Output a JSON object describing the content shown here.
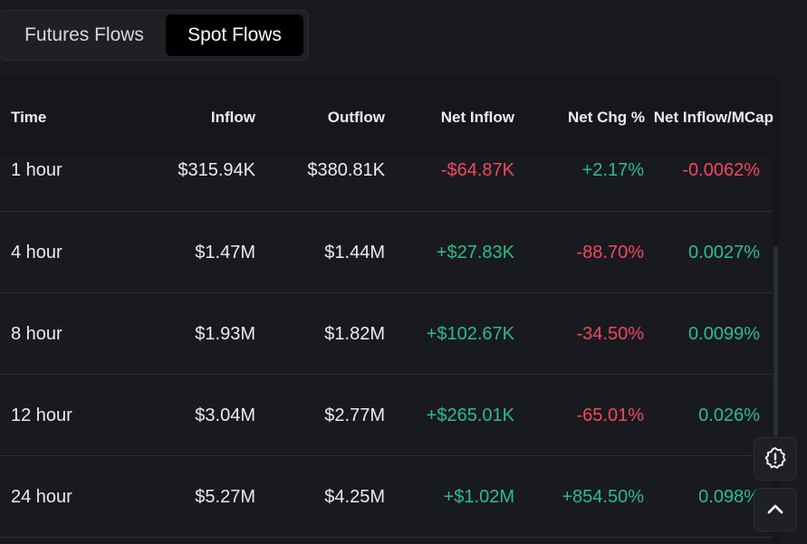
{
  "tabs": [
    {
      "label": "Futures Flows",
      "active": false
    },
    {
      "label": "Spot Flows",
      "active": true
    }
  ],
  "table": {
    "headers": {
      "time": "Time",
      "inflow": "Inflow",
      "outflow": "Outflow",
      "net_inflow": "Net Inflow",
      "net_chg": "Net Chg %",
      "net_mcap": "Net Inflow/MCap"
    },
    "rows": [
      {
        "time": "1 hour",
        "inflow": "$315.94K",
        "outflow": "$380.81K",
        "net_inflow": "-$64.87K",
        "net_chg": "+2.17%",
        "net_mcap": "-0.0062%"
      },
      {
        "time": "4 hour",
        "inflow": "$1.47M",
        "outflow": "$1.44M",
        "net_inflow": "+$27.83K",
        "net_chg": "-88.70%",
        "net_mcap": "0.0027%"
      },
      {
        "time": "8 hour",
        "inflow": "$1.93M",
        "outflow": "$1.82M",
        "net_inflow": "+$102.67K",
        "net_chg": "-34.50%",
        "net_mcap": "0.0099%"
      },
      {
        "time": "12 hour",
        "inflow": "$3.04M",
        "outflow": "$2.77M",
        "net_inflow": "+$265.01K",
        "net_chg": "-65.01%",
        "net_mcap": "0.026%"
      },
      {
        "time": "24 hour",
        "inflow": "$5.27M",
        "outflow": "$4.25M",
        "net_inflow": "+$1.02M",
        "net_chg": "+854.50%",
        "net_mcap": "0.098%"
      }
    ]
  },
  "colors": {
    "positive": "#2ebd85",
    "negative": "#f6465d",
    "background": "#181a20"
  },
  "icons": {
    "alert": "alert-badge-icon",
    "scroll_top": "chevron-up-icon"
  }
}
